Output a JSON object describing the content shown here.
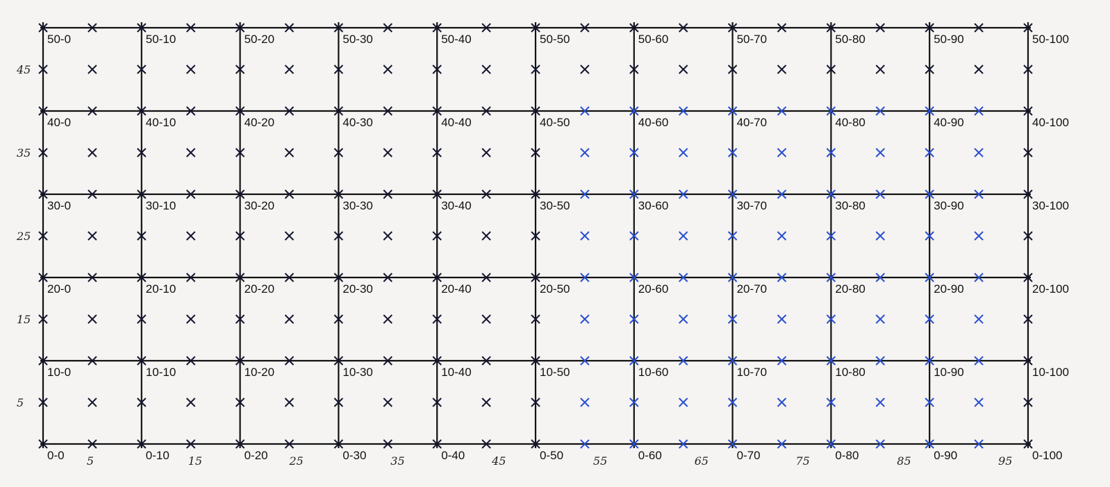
{
  "grid": {
    "node_labels": [
      [
        "50-0",
        "50-10",
        "50-20",
        "50-30",
        "50-40",
        "50-50",
        "50-60",
        "50-70",
        "50-80",
        "50-90",
        "50-100"
      ],
      [
        "40-0",
        "40-10",
        "40-20",
        "40-30",
        "40-40",
        "40-50",
        "40-60",
        "40-70",
        "40-80",
        "40-90",
        "40-100"
      ],
      [
        "30-0",
        "30-10",
        "30-20",
        "30-30",
        "30-40",
        "30-50",
        "30-60",
        "30-70",
        "30-80",
        "30-90",
        "30-100"
      ],
      [
        "20-0",
        "20-10",
        "20-20",
        "20-30",
        "20-40",
        "20-50",
        "20-60",
        "20-70",
        "20-80",
        "20-90",
        "20-100"
      ],
      [
        "10-0",
        "10-10",
        "10-20",
        "10-30",
        "10-40",
        "10-50",
        "10-60",
        "10-70",
        "10-80",
        "10-90",
        "10-100"
      ],
      [
        "0-0",
        "0-10",
        "0-20",
        "0-30",
        "0-40",
        "0-50",
        "0-60",
        "0-70",
        "0-80",
        "0-90",
        "0-100"
      ]
    ],
    "left_labels": [
      "45",
      "35",
      "25",
      "15",
      "5"
    ],
    "bottom_labels": [
      "5",
      "15",
      "25",
      "35",
      "45",
      "55",
      "65",
      "75",
      "85",
      "95"
    ]
  }
}
